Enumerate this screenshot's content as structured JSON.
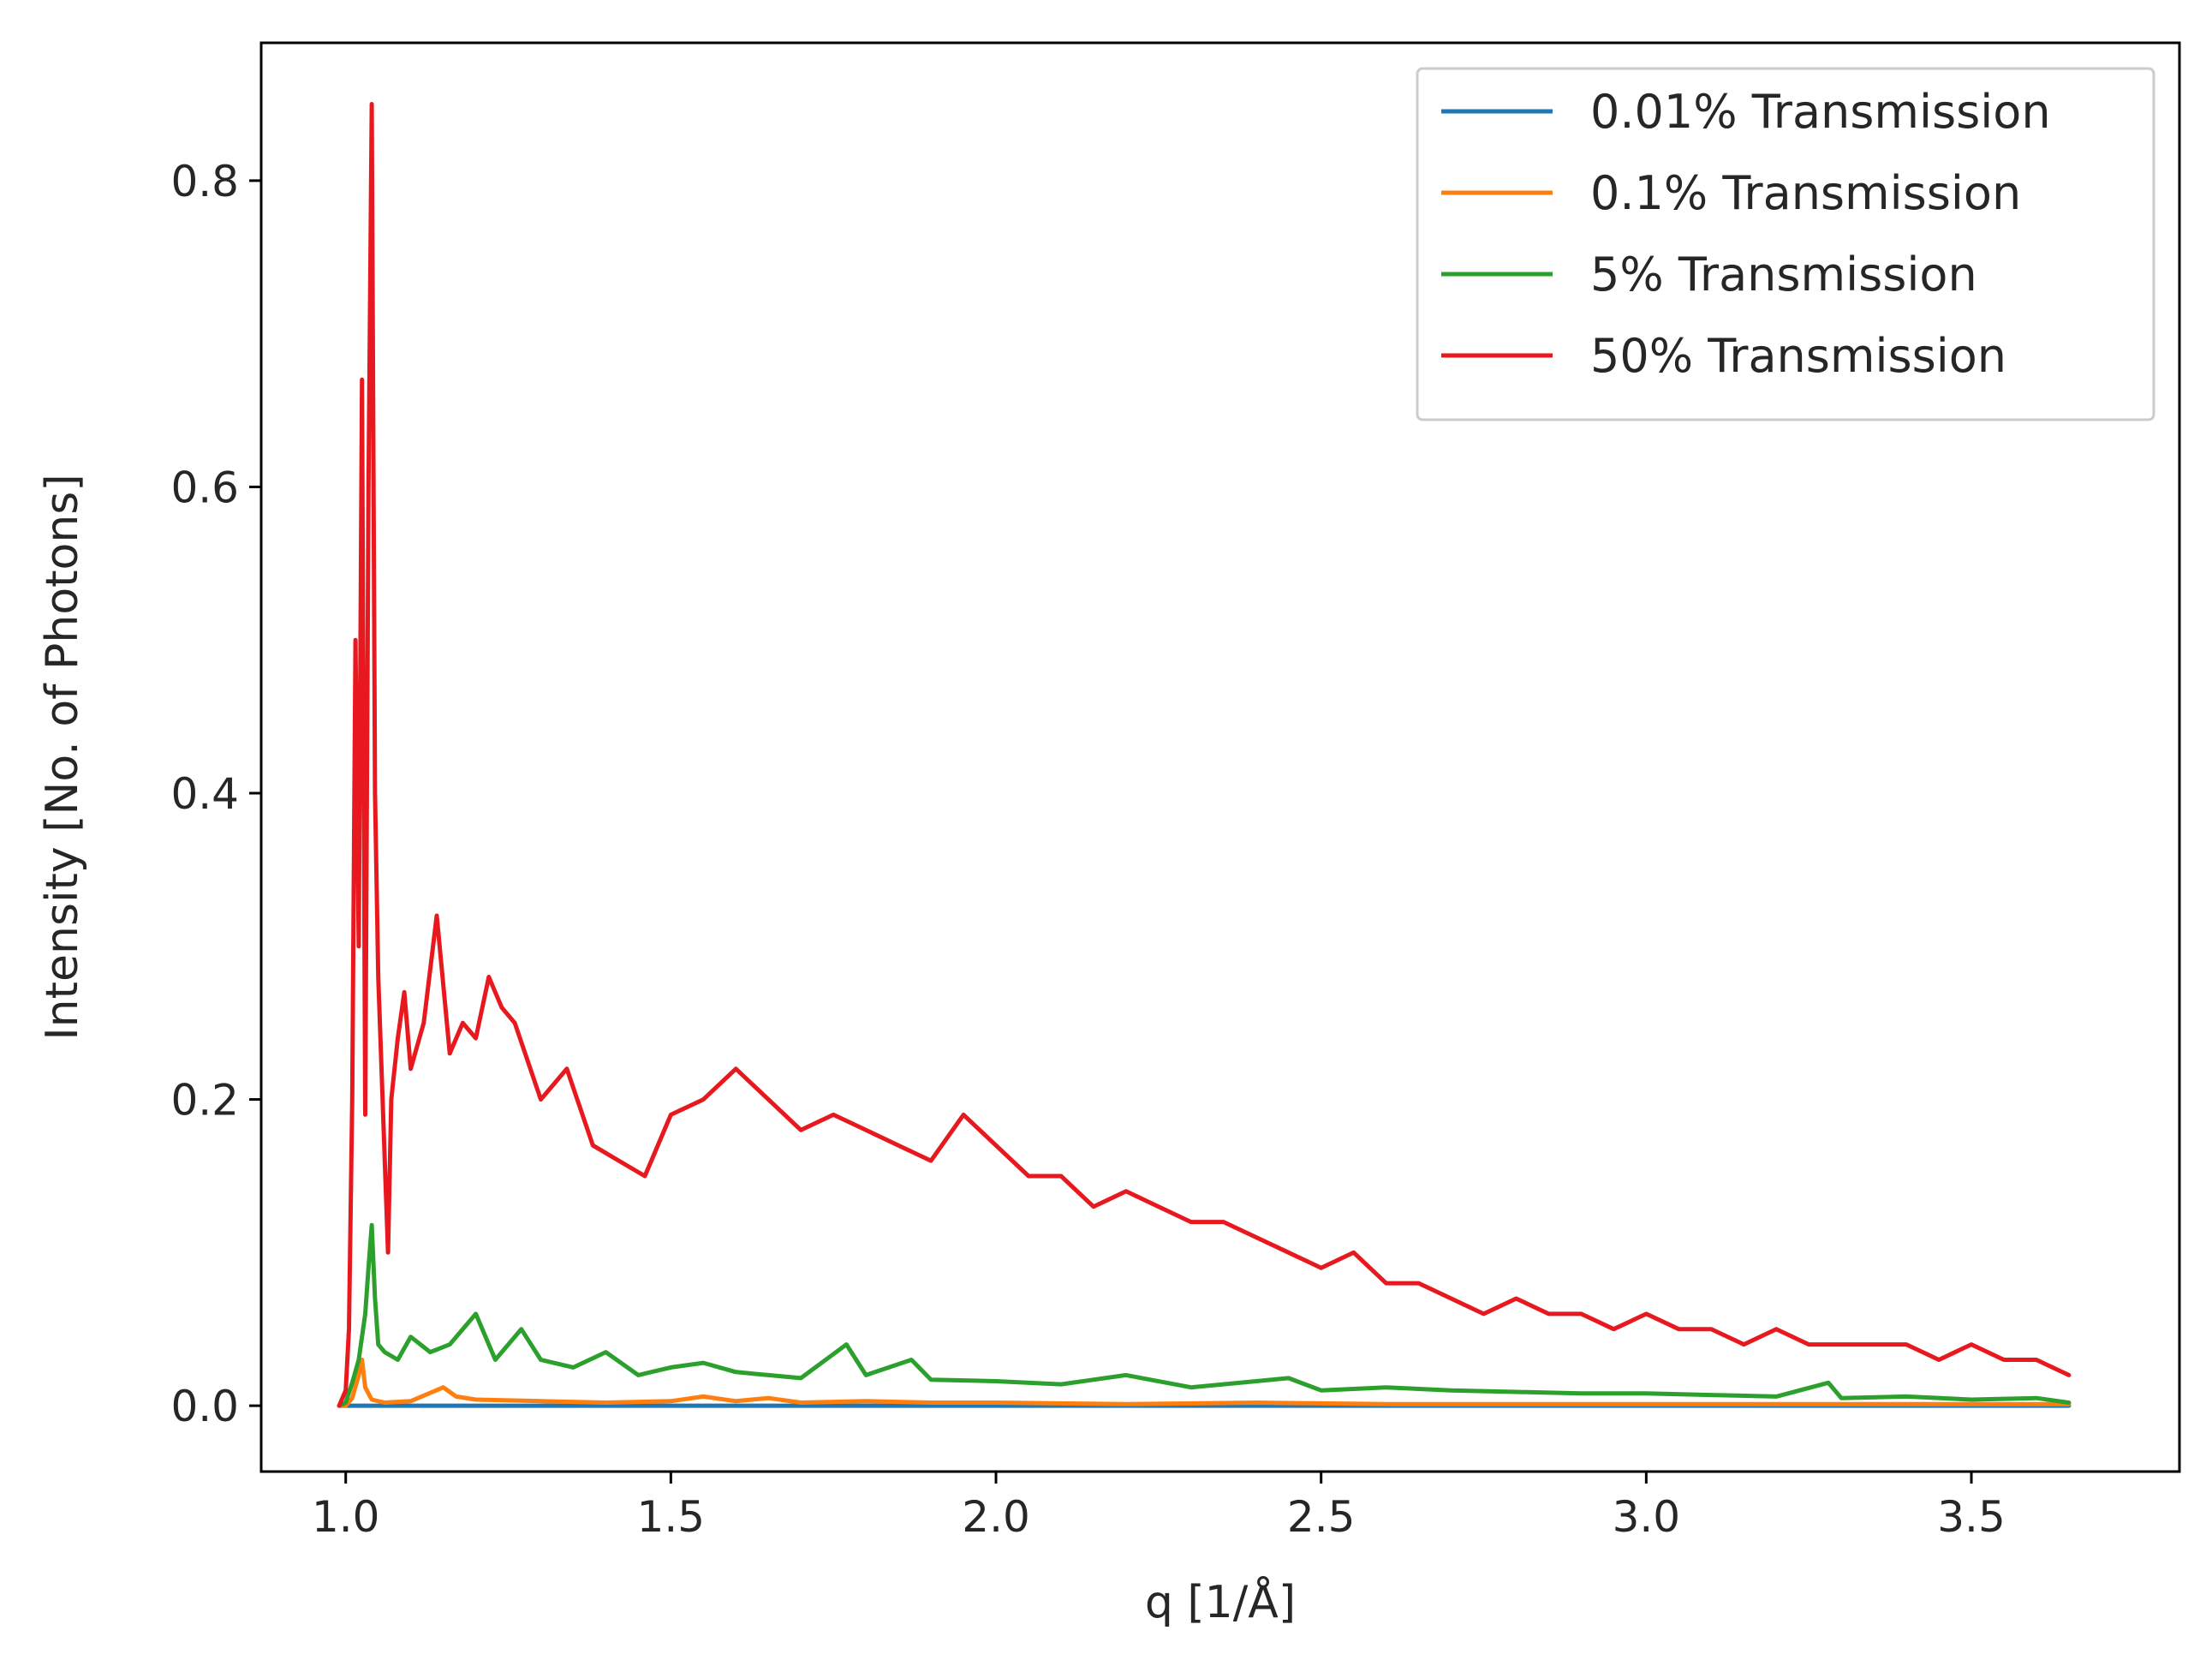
{
  "chart_data": {
    "type": "line",
    "xlabel": "q [1/Å]",
    "ylabel": "Intensity [No. of Photons]",
    "xlim": [
      0.87,
      3.82
    ],
    "ylim": [
      -0.043,
      0.89
    ],
    "xticks": [
      1.0,
      1.5,
      2.0,
      2.5,
      3.0,
      3.5
    ],
    "xtick_labels": [
      "1.0",
      "1.5",
      "2.0",
      "2.5",
      "3.0",
      "3.5"
    ],
    "yticks": [
      0.0,
      0.2,
      0.4,
      0.6,
      0.8
    ],
    "ytick_labels": [
      "0.0",
      "0.2",
      "0.4",
      "0.6",
      "0.8"
    ],
    "grid": false,
    "legend_position": "top-right",
    "series": [
      {
        "name": "0.01% Transmission",
        "color": "#1f77b4",
        "x": [
          0.99,
          1.0,
          1.2,
          1.5,
          1.8,
          2.1,
          2.4,
          2.7,
          3.0,
          3.3,
          3.65
        ],
        "y": [
          0.0,
          0.0,
          0.0,
          0.0,
          0.0,
          0.0,
          0.0,
          0.0,
          0.0,
          0.0,
          0.0
        ]
      },
      {
        "name": "0.1% Transmission",
        "color": "#ff7f0e",
        "x": [
          0.99,
          1.0,
          1.01,
          1.02,
          1.025,
          1.03,
          1.04,
          1.06,
          1.1,
          1.15,
          1.17,
          1.2,
          1.3,
          1.4,
          1.5,
          1.55,
          1.6,
          1.65,
          1.7,
          1.8,
          1.9,
          2.0,
          2.2,
          2.4,
          2.6,
          2.8,
          3.0,
          3.2,
          3.4,
          3.65
        ],
        "y": [
          0.0,
          0.0,
          0.005,
          0.02,
          0.03,
          0.012,
          0.004,
          0.002,
          0.003,
          0.012,
          0.006,
          0.004,
          0.003,
          0.002,
          0.003,
          0.006,
          0.003,
          0.005,
          0.002,
          0.003,
          0.002,
          0.002,
          0.001,
          0.002,
          0.001,
          0.001,
          0.001,
          0.001,
          0.001,
          0.001
        ]
      },
      {
        "name": "5% Transmission",
        "color": "#2ca02c",
        "x": [
          0.99,
          1.0,
          1.01,
          1.02,
          1.03,
          1.035,
          1.04,
          1.045,
          1.05,
          1.06,
          1.08,
          1.1,
          1.13,
          1.16,
          1.2,
          1.23,
          1.27,
          1.3,
          1.35,
          1.4,
          1.45,
          1.5,
          1.55,
          1.6,
          1.65,
          1.7,
          1.77,
          1.8,
          1.87,
          1.9,
          2.0,
          2.1,
          2.2,
          2.3,
          2.4,
          2.45,
          2.5,
          2.6,
          2.7,
          2.8,
          2.9,
          3.0,
          3.1,
          3.2,
          3.28,
          3.3,
          3.4,
          3.5,
          3.6,
          3.65
        ],
        "y": [
          0.0,
          0.002,
          0.015,
          0.03,
          0.06,
          0.09,
          0.118,
          0.07,
          0.04,
          0.035,
          0.03,
          0.045,
          0.035,
          0.04,
          0.06,
          0.03,
          0.05,
          0.03,
          0.025,
          0.035,
          0.02,
          0.025,
          0.028,
          0.022,
          0.02,
          0.018,
          0.04,
          0.02,
          0.03,
          0.017,
          0.016,
          0.014,
          0.02,
          0.012,
          0.016,
          0.018,
          0.01,
          0.012,
          0.01,
          0.009,
          0.008,
          0.008,
          0.007,
          0.006,
          0.015,
          0.005,
          0.006,
          0.004,
          0.005,
          0.002
        ]
      },
      {
        "name": "50% Transmission",
        "color": "#e8191e",
        "x": [
          0.99,
          1.0,
          1.005,
          1.01,
          1.015,
          1.02,
          1.025,
          1.03,
          1.035,
          1.04,
          1.045,
          1.05,
          1.055,
          1.06,
          1.065,
          1.07,
          1.08,
          1.09,
          1.1,
          1.12,
          1.14,
          1.16,
          1.18,
          1.2,
          1.22,
          1.24,
          1.26,
          1.3,
          1.34,
          1.38,
          1.42,
          1.46,
          1.5,
          1.55,
          1.6,
          1.65,
          1.7,
          1.75,
          1.8,
          1.85,
          1.9,
          1.95,
          2.0,
          2.05,
          2.1,
          2.15,
          2.2,
          2.25,
          2.3,
          2.35,
          2.4,
          2.45,
          2.5,
          2.55,
          2.6,
          2.65,
          2.7,
          2.75,
          2.8,
          2.85,
          2.9,
          2.95,
          3.0,
          3.05,
          3.1,
          3.15,
          3.2,
          3.25,
          3.3,
          3.35,
          3.4,
          3.45,
          3.5,
          3.55,
          3.6,
          3.65
        ],
        "y": [
          0.0,
          0.01,
          0.05,
          0.2,
          0.5,
          0.3,
          0.67,
          0.19,
          0.6,
          0.85,
          0.4,
          0.28,
          0.22,
          0.16,
          0.1,
          0.2,
          0.24,
          0.27,
          0.22,
          0.25,
          0.32,
          0.23,
          0.25,
          0.24,
          0.28,
          0.26,
          0.25,
          0.2,
          0.22,
          0.17,
          0.16,
          0.15,
          0.19,
          0.2,
          0.22,
          0.2,
          0.18,
          0.19,
          0.18,
          0.17,
          0.16,
          0.19,
          0.17,
          0.15,
          0.15,
          0.13,
          0.14,
          0.13,
          0.12,
          0.12,
          0.11,
          0.1,
          0.09,
          0.1,
          0.08,
          0.08,
          0.07,
          0.06,
          0.07,
          0.06,
          0.06,
          0.05,
          0.06,
          0.05,
          0.05,
          0.04,
          0.05,
          0.04,
          0.04,
          0.04,
          0.04,
          0.03,
          0.04,
          0.03,
          0.03,
          0.02
        ]
      }
    ]
  }
}
